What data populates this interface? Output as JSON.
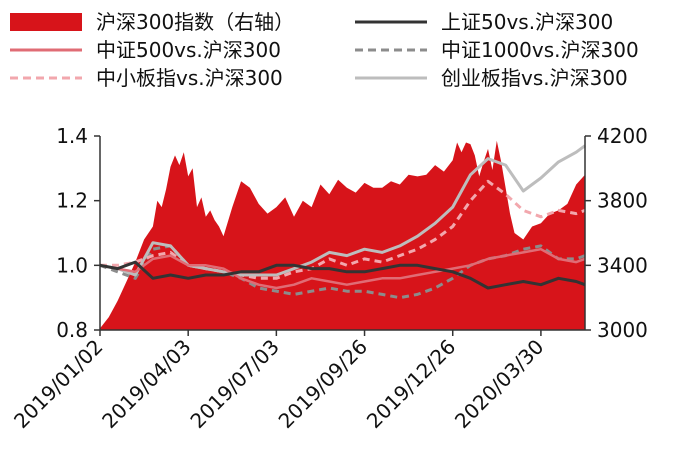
{
  "chart_data": {
    "type": "line",
    "legend": [
      {
        "label": "沪深300指数（右轴）",
        "style": "area",
        "color": "#d7141a"
      },
      {
        "label": "上证50vs.沪深300",
        "style": "solid",
        "color": "#333333"
      },
      {
        "label": "中证500vs.沪深300",
        "style": "solid",
        "color": "#e06c75"
      },
      {
        "label": "中证1000vs.沪深300",
        "style": "dashed",
        "color": "#8c8c8c"
      },
      {
        "label": "中小板指vs.沪深300",
        "style": "dashed",
        "color": "#f2a7ad"
      },
      {
        "label": "创业板指vs.沪深300",
        "style": "solid",
        "color": "#bdbdbd"
      }
    ],
    "x_ticks": [
      "2019/01/02",
      "2019/04/03",
      "2019/07/03",
      "2019/09/26",
      "2019/12/26",
      "2020/03/30"
    ],
    "y_left": {
      "min": 0.8,
      "max": 1.4,
      "ticks": [
        "0.8",
        "1.0",
        "1.2",
        "1.4"
      ]
    },
    "y_right": {
      "min": 3000,
      "max": 4200,
      "ticks": [
        "3000",
        "3400",
        "3800",
        "4200"
      ]
    },
    "x_range": [
      0,
      110
    ],
    "x_tick_positions": [
      0,
      20,
      40,
      60,
      80,
      100
    ],
    "area_series": {
      "name": "沪深300指数（右轴）",
      "axis": "right",
      "x": [
        0,
        2,
        4,
        6,
        8,
        10,
        12,
        13,
        14,
        15,
        16,
        17,
        18,
        19,
        20,
        21,
        22,
        23,
        24,
        25,
        26,
        27,
        28,
        30,
        32,
        34,
        36,
        38,
        40,
        42,
        44,
        46,
        48,
        50,
        52,
        54,
        56,
        58,
        60,
        62,
        64,
        66,
        68,
        70,
        72,
        74,
        76,
        78,
        80,
        81,
        82,
        83,
        84,
        85,
        86,
        87,
        88,
        89,
        90,
        91,
        92,
        93,
        94,
        96,
        98,
        100,
        102,
        104,
        106,
        108,
        110
      ],
      "values": [
        3010,
        3080,
        3180,
        3300,
        3420,
        3560,
        3640,
        3800,
        3760,
        3870,
        4010,
        4080,
        4020,
        4100,
        3950,
        4000,
        3760,
        3820,
        3700,
        3740,
        3680,
        3640,
        3580,
        3760,
        3920,
        3880,
        3780,
        3720,
        3760,
        3820,
        3700,
        3800,
        3760,
        3900,
        3840,
        3930,
        3880,
        3850,
        3910,
        3880,
        3880,
        3920,
        3900,
        3960,
        3950,
        3960,
        4020,
        3980,
        4050,
        4160,
        4100,
        4160,
        4150,
        4080,
        3950,
        4040,
        4120,
        3990,
        4170,
        4040,
        3880,
        3720,
        3600,
        3560,
        3640,
        3660,
        3720,
        3740,
        3780,
        3900,
        3960
      ]
    },
    "series": [
      {
        "name": "上证50vs.沪深300",
        "axis": "left",
        "x": [
          0,
          4,
          8,
          12,
          16,
          20,
          24,
          28,
          32,
          36,
          40,
          44,
          48,
          52,
          56,
          60,
          64,
          68,
          72,
          76,
          80,
          84,
          88,
          92,
          96,
          100,
          104,
          108,
          110
        ],
        "values": [
          1.0,
          0.99,
          1.01,
          0.96,
          0.97,
          0.96,
          0.97,
          0.97,
          0.98,
          0.98,
          1.0,
          1.0,
          0.99,
          0.99,
          0.98,
          0.98,
          0.99,
          1.0,
          1.0,
          0.99,
          0.98,
          0.96,
          0.93,
          0.94,
          0.95,
          0.94,
          0.96,
          0.95,
          0.94
        ]
      },
      {
        "name": "中证500vs.沪深300",
        "axis": "left",
        "x": [
          0,
          4,
          8,
          12,
          16,
          20,
          24,
          28,
          32,
          36,
          40,
          44,
          48,
          52,
          56,
          60,
          64,
          68,
          72,
          76,
          80,
          84,
          88,
          92,
          96,
          100,
          104,
          108,
          110
        ],
        "values": [
          1.0,
          0.99,
          0.98,
          1.02,
          1.03,
          1.0,
          1.0,
          0.99,
          0.96,
          0.94,
          0.93,
          0.94,
          0.96,
          0.95,
          0.94,
          0.95,
          0.96,
          0.96,
          0.97,
          0.98,
          0.99,
          1.0,
          1.02,
          1.03,
          1.04,
          1.05,
          1.02,
          1.01,
          1.02
        ]
      },
      {
        "name": "中证1000vs.沪深300",
        "axis": "left",
        "x": [
          0,
          4,
          8,
          12,
          16,
          20,
          24,
          28,
          32,
          36,
          40,
          44,
          48,
          52,
          56,
          60,
          64,
          68,
          72,
          76,
          80,
          84,
          88,
          92,
          96,
          100,
          104,
          108,
          110
        ],
        "values": [
          1.0,
          0.98,
          0.96,
          1.05,
          1.06,
          1.0,
          0.99,
          0.98,
          0.96,
          0.93,
          0.92,
          0.91,
          0.92,
          0.93,
          0.92,
          0.92,
          0.91,
          0.9,
          0.91,
          0.93,
          0.96,
          1.0,
          1.02,
          1.03,
          1.05,
          1.06,
          1.02,
          1.02,
          1.03
        ]
      },
      {
        "name": "中小板指vs.沪深300",
        "axis": "left",
        "x": [
          0,
          4,
          8,
          12,
          16,
          20,
          24,
          28,
          32,
          36,
          40,
          44,
          48,
          52,
          56,
          60,
          64,
          68,
          72,
          76,
          80,
          84,
          88,
          92,
          96,
          100,
          104,
          108,
          110
        ],
        "values": [
          1.0,
          1.0,
          1.01,
          1.03,
          1.04,
          1.0,
          0.99,
          0.98,
          0.97,
          0.96,
          0.96,
          0.98,
          0.99,
          1.02,
          1.0,
          1.02,
          1.01,
          1.03,
          1.05,
          1.08,
          1.12,
          1.2,
          1.26,
          1.22,
          1.17,
          1.15,
          1.17,
          1.16,
          1.17
        ]
      },
      {
        "name": "创业板指vs.沪深300",
        "axis": "left",
        "x": [
          0,
          4,
          8,
          12,
          16,
          20,
          24,
          28,
          32,
          36,
          40,
          44,
          48,
          52,
          56,
          60,
          64,
          68,
          72,
          76,
          80,
          84,
          88,
          92,
          96,
          100,
          104,
          108,
          110
        ],
        "values": [
          1.0,
          0.99,
          0.97,
          1.07,
          1.06,
          1.0,
          0.99,
          0.98,
          0.97,
          0.97,
          0.97,
          0.99,
          1.01,
          1.04,
          1.03,
          1.05,
          1.04,
          1.06,
          1.09,
          1.13,
          1.18,
          1.28,
          1.33,
          1.31,
          1.23,
          1.27,
          1.32,
          1.35,
          1.37
        ]
      }
    ]
  }
}
